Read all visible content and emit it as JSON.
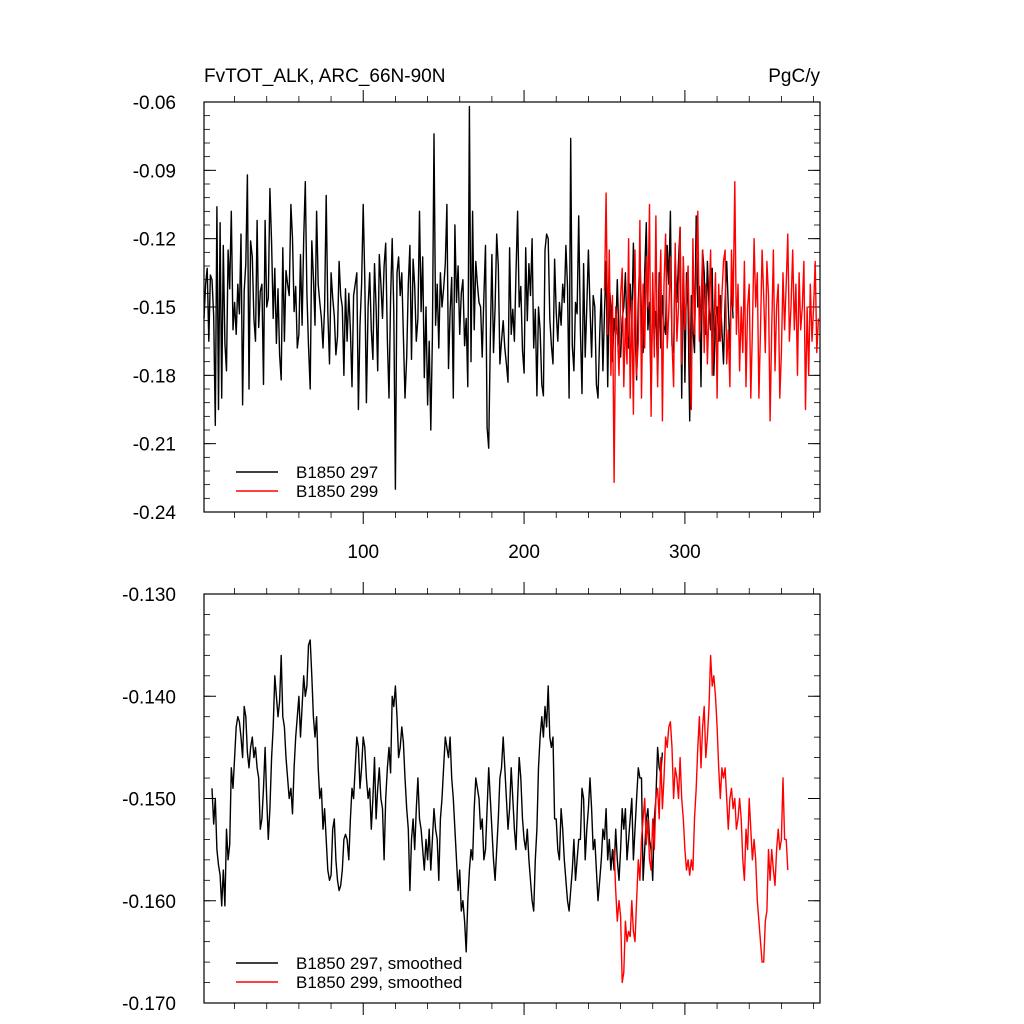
{
  "chart_data": [
    {
      "type": "line",
      "title": "FvTOT_ALK, ARC_66N-90N",
      "units": "PgC/y",
      "xlabel": "",
      "ylabel": "",
      "xlim": [
        1,
        384
      ],
      "ylim": [
        -0.24,
        -0.06
      ],
      "x_ticks": [
        100,
        200,
        300
      ],
      "x_ticks_labels": [
        "100",
        "200",
        "300"
      ],
      "y_ticks": [
        -0.06,
        -0.09,
        -0.12,
        -0.15,
        -0.18,
        -0.21,
        -0.24
      ],
      "y_ticks_labels": [
        "-0.06",
        "-0.09",
        "-0.12",
        "-0.15",
        "-0.18",
        "-0.21",
        "-0.24"
      ],
      "legend_position": "bottom-left",
      "series": [
        {
          "name": "B1850 297",
          "color": "#000000",
          "x_start": 1,
          "values": [
            -0.155,
            -0.14,
            -0.133,
            -0.165,
            -0.136,
            -0.138,
            -0.154,
            -0.202,
            -0.106,
            -0.195,
            -0.113,
            -0.19,
            -0.123,
            -0.166,
            -0.178,
            -0.125,
            -0.142,
            -0.108,
            -0.16,
            -0.148,
            -0.162,
            -0.14,
            -0.153,
            -0.118,
            -0.193,
            -0.143,
            -0.131,
            -0.092,
            -0.186,
            -0.121,
            -0.128,
            -0.155,
            -0.165,
            -0.112,
            -0.159,
            -0.143,
            -0.14,
            -0.184,
            -0.112,
            -0.15,
            -0.146,
            -0.098,
            -0.122,
            -0.155,
            -0.133,
            -0.166,
            -0.142,
            -0.171,
            -0.182,
            -0.124,
            -0.165,
            -0.134,
            -0.14,
            -0.145,
            -0.105,
            -0.12,
            -0.152,
            -0.141,
            -0.168,
            -0.162,
            -0.127,
            -0.158,
            -0.12,
            -0.095,
            -0.144,
            -0.167,
            -0.186,
            -0.121,
            -0.137,
            -0.158,
            -0.108,
            -0.14,
            -0.148,
            -0.155,
            -0.168,
            -0.15,
            -0.101,
            -0.152,
            -0.175,
            -0.135,
            -0.146,
            -0.154,
            -0.171,
            -0.163,
            -0.13,
            -0.145,
            -0.15,
            -0.18,
            -0.142,
            -0.165,
            -0.144,
            -0.16,
            -0.185,
            -0.145,
            -0.14,
            -0.135,
            -0.195,
            -0.158,
            -0.14,
            -0.105,
            -0.138,
            -0.192,
            -0.15,
            -0.135,
            -0.16,
            -0.173,
            -0.131,
            -0.15,
            -0.178,
            -0.127,
            -0.14,
            -0.155,
            -0.132,
            -0.122,
            -0.165,
            -0.19,
            -0.146,
            -0.12,
            -0.152,
            -0.23,
            -0.135,
            -0.128,
            -0.145,
            -0.135,
            -0.163,
            -0.19,
            -0.172,
            -0.14,
            -0.123,
            -0.173,
            -0.129,
            -0.141,
            -0.165,
            -0.155,
            -0.108,
            -0.152,
            -0.128,
            -0.181,
            -0.15,
            -0.193,
            -0.165,
            -0.204,
            -0.163,
            -0.074,
            -0.158,
            -0.14,
            -0.168,
            -0.135,
            -0.15,
            -0.142,
            -0.131,
            -0.105,
            -0.177,
            -0.152,
            -0.137,
            -0.19,
            -0.114,
            -0.148,
            -0.132,
            -0.162,
            -0.144,
            -0.138,
            -0.167,
            -0.155,
            -0.185,
            -0.062,
            -0.174,
            -0.108,
            -0.16,
            -0.13,
            -0.14,
            -0.148,
            -0.15,
            -0.172,
            -0.145,
            -0.123,
            -0.203,
            -0.212,
            -0.165,
            -0.127,
            -0.17,
            -0.15,
            -0.118,
            -0.132,
            -0.175,
            -0.165,
            -0.156,
            -0.168,
            -0.175,
            -0.183,
            -0.124,
            -0.162,
            -0.151,
            -0.165,
            -0.135,
            -0.108,
            -0.15,
            -0.141,
            -0.169,
            -0.179,
            -0.124,
            -0.156,
            -0.131,
            -0.145,
            -0.12,
            -0.168,
            -0.151,
            -0.189,
            -0.15,
            -0.16,
            -0.184,
            -0.189,
            -0.125,
            -0.118,
            -0.12,
            -0.155,
            -0.167,
            -0.175,
            -0.129,
            -0.152,
            -0.165,
            -0.148,
            -0.158,
            -0.14,
            -0.148,
            -0.123,
            -0.141,
            -0.19,
            -0.076,
            -0.167,
            -0.178,
            -0.148,
            -0.153,
            -0.11,
            -0.16,
            -0.188,
            -0.131,
            -0.172,
            -0.15,
            -0.125,
            -0.15,
            -0.172,
            -0.145,
            -0.15,
            -0.184,
            -0.19,
            -0.162,
            -0.142,
            -0.178,
            -0.152,
            -0.13,
            -0.185,
            -0.14,
            -0.15,
            -0.174,
            -0.155,
            -0.162,
            -0.138,
            -0.165,
            -0.172,
            -0.155,
            -0.15,
            -0.135,
            -0.162,
            -0.168,
            -0.14,
            -0.158,
            -0.122,
            -0.158,
            -0.182,
            -0.148,
            -0.126,
            -0.155,
            -0.17,
            -0.135,
            -0.113,
            -0.16,
            -0.148,
            -0.19,
            -0.142,
            -0.16,
            -0.152,
            -0.18,
            -0.135,
            -0.168,
            -0.145,
            -0.158,
            -0.162,
            -0.123,
            -0.14,
            -0.108,
            -0.167,
            -0.17,
            -0.128,
            -0.148,
            -0.13,
            -0.115,
            -0.19,
            -0.128,
            -0.183,
            -0.135,
            -0.15,
            -0.2,
            -0.145,
            -0.16,
            -0.17,
            -0.11,
            -0.15,
            -0.141,
            -0.185,
            -0.125,
            -0.135,
            -0.162,
            -0.13,
            -0.15,
            -0.16,
            -0.133,
            -0.18,
            -0.155,
            -0.15,
            -0.165,
            -0.145,
            -0.16,
            -0.175,
            -0.148,
            -0.13,
            -0.15,
            -0.168,
            -0.14,
            -0.155
          ]
        },
        {
          "name": "B1850 299",
          "color": "#ff0000",
          "x_start": 250,
          "values": [
            -0.143,
            -0.1,
            -0.162,
            -0.125,
            -0.18,
            -0.145,
            -0.227,
            -0.15,
            -0.16,
            -0.18,
            -0.145,
            -0.133,
            -0.185,
            -0.155,
            -0.175,
            -0.12,
            -0.19,
            -0.147,
            -0.197,
            -0.125,
            -0.18,
            -0.165,
            -0.112,
            -0.19,
            -0.14,
            -0.168,
            -0.128,
            -0.15,
            -0.105,
            -0.198,
            -0.135,
            -0.172,
            -0.11,
            -0.185,
            -0.15,
            -0.125,
            -0.2,
            -0.14,
            -0.118,
            -0.168,
            -0.152,
            -0.128,
            -0.165,
            -0.185,
            -0.122,
            -0.165,
            -0.15,
            -0.115,
            -0.175,
            -0.128,
            -0.16,
            -0.145,
            -0.132,
            -0.17,
            -0.195,
            -0.12,
            -0.162,
            -0.135,
            -0.108,
            -0.165,
            -0.15,
            -0.125,
            -0.17,
            -0.14,
            -0.175,
            -0.15,
            -0.125,
            -0.18,
            -0.16,
            -0.135,
            -0.19,
            -0.14,
            -0.165,
            -0.145,
            -0.13,
            -0.125,
            -0.175,
            -0.16,
            -0.185,
            -0.125,
            -0.15,
            -0.095,
            -0.162,
            -0.14,
            -0.178,
            -0.15,
            -0.17,
            -0.13,
            -0.185,
            -0.15,
            -0.14,
            -0.19,
            -0.16,
            -0.12,
            -0.15,
            -0.135,
            -0.19,
            -0.16,
            -0.125,
            -0.145,
            -0.17,
            -0.13,
            -0.145,
            -0.2,
            -0.16,
            -0.125,
            -0.178,
            -0.15,
            -0.14,
            -0.19,
            -0.17,
            -0.135,
            -0.16,
            -0.14,
            -0.118,
            -0.165,
            -0.15,
            -0.125,
            -0.16,
            -0.14,
            -0.18,
            -0.135,
            -0.16,
            -0.15,
            -0.13,
            -0.195,
            -0.15,
            -0.18,
            -0.14,
            -0.165,
            -0.15,
            -0.13,
            -0.17,
            -0.155
          ]
        }
      ]
    },
    {
      "type": "line",
      "title": "",
      "xlabel": "",
      "ylabel": "",
      "xlim": [
        1,
        384
      ],
      "ylim": [
        -0.17,
        -0.13
      ],
      "x_ticks": [
        100,
        200,
        300
      ],
      "y_ticks": [
        -0.13,
        -0.14,
        -0.15,
        -0.16,
        -0.17
      ],
      "y_ticks_labels": [
        "-0.130",
        "-0.140",
        "-0.150",
        "-0.160",
        "-0.170"
      ],
      "legend_position": "bottom-left",
      "series": [
        {
          "name": "B1850 297, smoothed",
          "color": "#000000",
          "x_start": 6,
          "values": [
            -0.149,
            -0.1525,
            -0.15,
            -0.155,
            -0.1565,
            -0.1575,
            -0.1605,
            -0.157,
            -0.1605,
            -0.153,
            -0.156,
            -0.1545,
            -0.147,
            -0.149,
            -0.146,
            -0.143,
            -0.142,
            -0.1425,
            -0.144,
            -0.146,
            -0.141,
            -0.142,
            -0.1455,
            -0.147,
            -0.145,
            -0.144,
            -0.146,
            -0.145,
            -0.147,
            -0.148,
            -0.153,
            -0.152,
            -0.149,
            -0.145,
            -0.15,
            -0.154,
            -0.151,
            -0.146,
            -0.143,
            -0.138,
            -0.14,
            -0.142,
            -0.1405,
            -0.136,
            -0.142,
            -0.143,
            -0.146,
            -0.148,
            -0.15,
            -0.149,
            -0.1515,
            -0.147,
            -0.144,
            -0.142,
            -0.14,
            -0.144,
            -0.141,
            -0.138,
            -0.14,
            -0.139,
            -0.135,
            -0.1345,
            -0.138,
            -0.142,
            -0.144,
            -0.142,
            -0.147,
            -0.15,
            -0.149,
            -0.153,
            -0.151,
            -0.154,
            -0.157,
            -0.158,
            -0.1575,
            -0.153,
            -0.152,
            -0.156,
            -0.158,
            -0.159,
            -0.1585,
            -0.157,
            -0.154,
            -0.1535,
            -0.154,
            -0.156,
            -0.152,
            -0.149,
            -0.15,
            -0.147,
            -0.144,
            -0.145,
            -0.149,
            -0.147,
            -0.144,
            -0.145,
            -0.148,
            -0.15,
            -0.149,
            -0.153,
            -0.15,
            -0.146,
            -0.152,
            -0.149,
            -0.147,
            -0.15,
            -0.151,
            -0.156,
            -0.15,
            -0.147,
            -0.145,
            -0.1475,
            -0.14,
            -0.141,
            -0.139,
            -0.142,
            -0.146,
            -0.145,
            -0.143,
            -0.1445,
            -0.148,
            -0.151,
            -0.153,
            -0.159,
            -0.154,
            -0.152,
            -0.155,
            -0.151,
            -0.148,
            -0.152,
            -0.153,
            -0.155,
            -0.157,
            -0.154,
            -0.156,
            -0.153,
            -0.157,
            -0.154,
            -0.151,
            -0.153,
            -0.154,
            -0.158,
            -0.152,
            -0.15,
            -0.147,
            -0.144,
            -0.145,
            -0.146,
            -0.144,
            -0.148,
            -0.15,
            -0.153,
            -0.156,
            -0.159,
            -0.157,
            -0.161,
            -0.16,
            -0.162,
            -0.165,
            -0.16,
            -0.157,
            -0.155,
            -0.156,
            -0.151,
            -0.148,
            -0.149,
            -0.15,
            -0.153,
            -0.152,
            -0.156,
            -0.155,
            -0.151,
            -0.147,
            -0.15,
            -0.153,
            -0.156,
            -0.158,
            -0.155,
            -0.152,
            -0.148,
            -0.147,
            -0.144,
            -0.147,
            -0.15,
            -0.153,
            -0.151,
            -0.147,
            -0.15,
            -0.153,
            -0.155,
            -0.15,
            -0.146,
            -0.148,
            -0.152,
            -0.154,
            -0.155,
            -0.153,
            -0.156,
            -0.158,
            -0.16,
            -0.161,
            -0.156,
            -0.153,
            -0.147,
            -0.144,
            -0.142,
            -0.144,
            -0.141,
            -0.143,
            -0.139,
            -0.144,
            -0.145,
            -0.144,
            -0.152,
            -0.152,
            -0.155,
            -0.156,
            -0.151,
            -0.153,
            -0.156,
            -0.158,
            -0.16,
            -0.161,
            -0.159,
            -0.157,
            -0.154,
            -0.158,
            -0.156,
            -0.154,
            -0.154,
            -0.149,
            -0.15,
            -0.156,
            -0.153,
            -0.151,
            -0.148,
            -0.151,
            -0.155,
            -0.154,
            -0.157,
            -0.16,
            -0.158,
            -0.156,
            -0.153,
            -0.154,
            -0.151,
            -0.156,
            -0.154,
            -0.157,
            -0.155,
            -0.157,
            -0.153,
            -0.156,
            -0.158,
            -0.155,
            -0.151,
            -0.153,
            -0.151,
            -0.156,
            -0.154,
            -0.152,
            -0.15,
            -0.156,
            -0.153,
            -0.15,
            -0.147,
            -0.148,
            -0.148,
            -0.158,
            -0.155,
            -0.152,
            -0.151,
            -0.154,
            -0.155,
            -0.158,
            -0.152,
            -0.15,
            -0.145,
            -0.147,
            -0.1475,
            -0.1455
          ]
        },
        {
          "name": "B1850 299, smoothed",
          "color": "#ff0000",
          "x_start": 256,
          "values": [
            -0.155,
            -0.159,
            -0.162,
            -0.16,
            -0.1615,
            -0.168,
            -0.167,
            -0.162,
            -0.164,
            -0.163,
            -0.1635,
            -0.16,
            -0.163,
            -0.164,
            -0.16,
            -0.156,
            -0.158,
            -0.154,
            -0.152,
            -0.15,
            -0.1545,
            -0.152,
            -0.156,
            -0.157,
            -0.152,
            -0.155,
            -0.15,
            -0.149,
            -0.152,
            -0.146,
            -0.151,
            -0.148,
            -0.144,
            -0.145,
            -0.143,
            -0.1425,
            -0.145,
            -0.15,
            -0.147,
            -0.148,
            -0.15,
            -0.146,
            -0.15,
            -0.152,
            -0.155,
            -0.157,
            -0.156,
            -0.1575,
            -0.156,
            -0.157,
            -0.152,
            -0.149,
            -0.145,
            -0.142,
            -0.147,
            -0.143,
            -0.141,
            -0.146,
            -0.144,
            -0.141,
            -0.136,
            -0.139,
            -0.138,
            -0.14,
            -0.143,
            -0.147,
            -0.15,
            -0.147,
            -0.148,
            -0.147,
            -0.15,
            -0.153,
            -0.15,
            -0.149,
            -0.151,
            -0.15,
            -0.153,
            -0.152,
            -0.15,
            -0.152,
            -0.156,
            -0.158,
            -0.153,
            -0.155,
            -0.15,
            -0.153,
            -0.156,
            -0.154,
            -0.156,
            -0.16,
            -0.162,
            -0.164,
            -0.166,
            -0.166,
            -0.162,
            -0.161,
            -0.155,
            -0.158,
            -0.155,
            -0.157,
            -0.1585,
            -0.155,
            -0.153,
            -0.155,
            -0.154,
            -0.148,
            -0.154,
            -0.154,
            -0.157
          ]
        }
      ]
    }
  ]
}
